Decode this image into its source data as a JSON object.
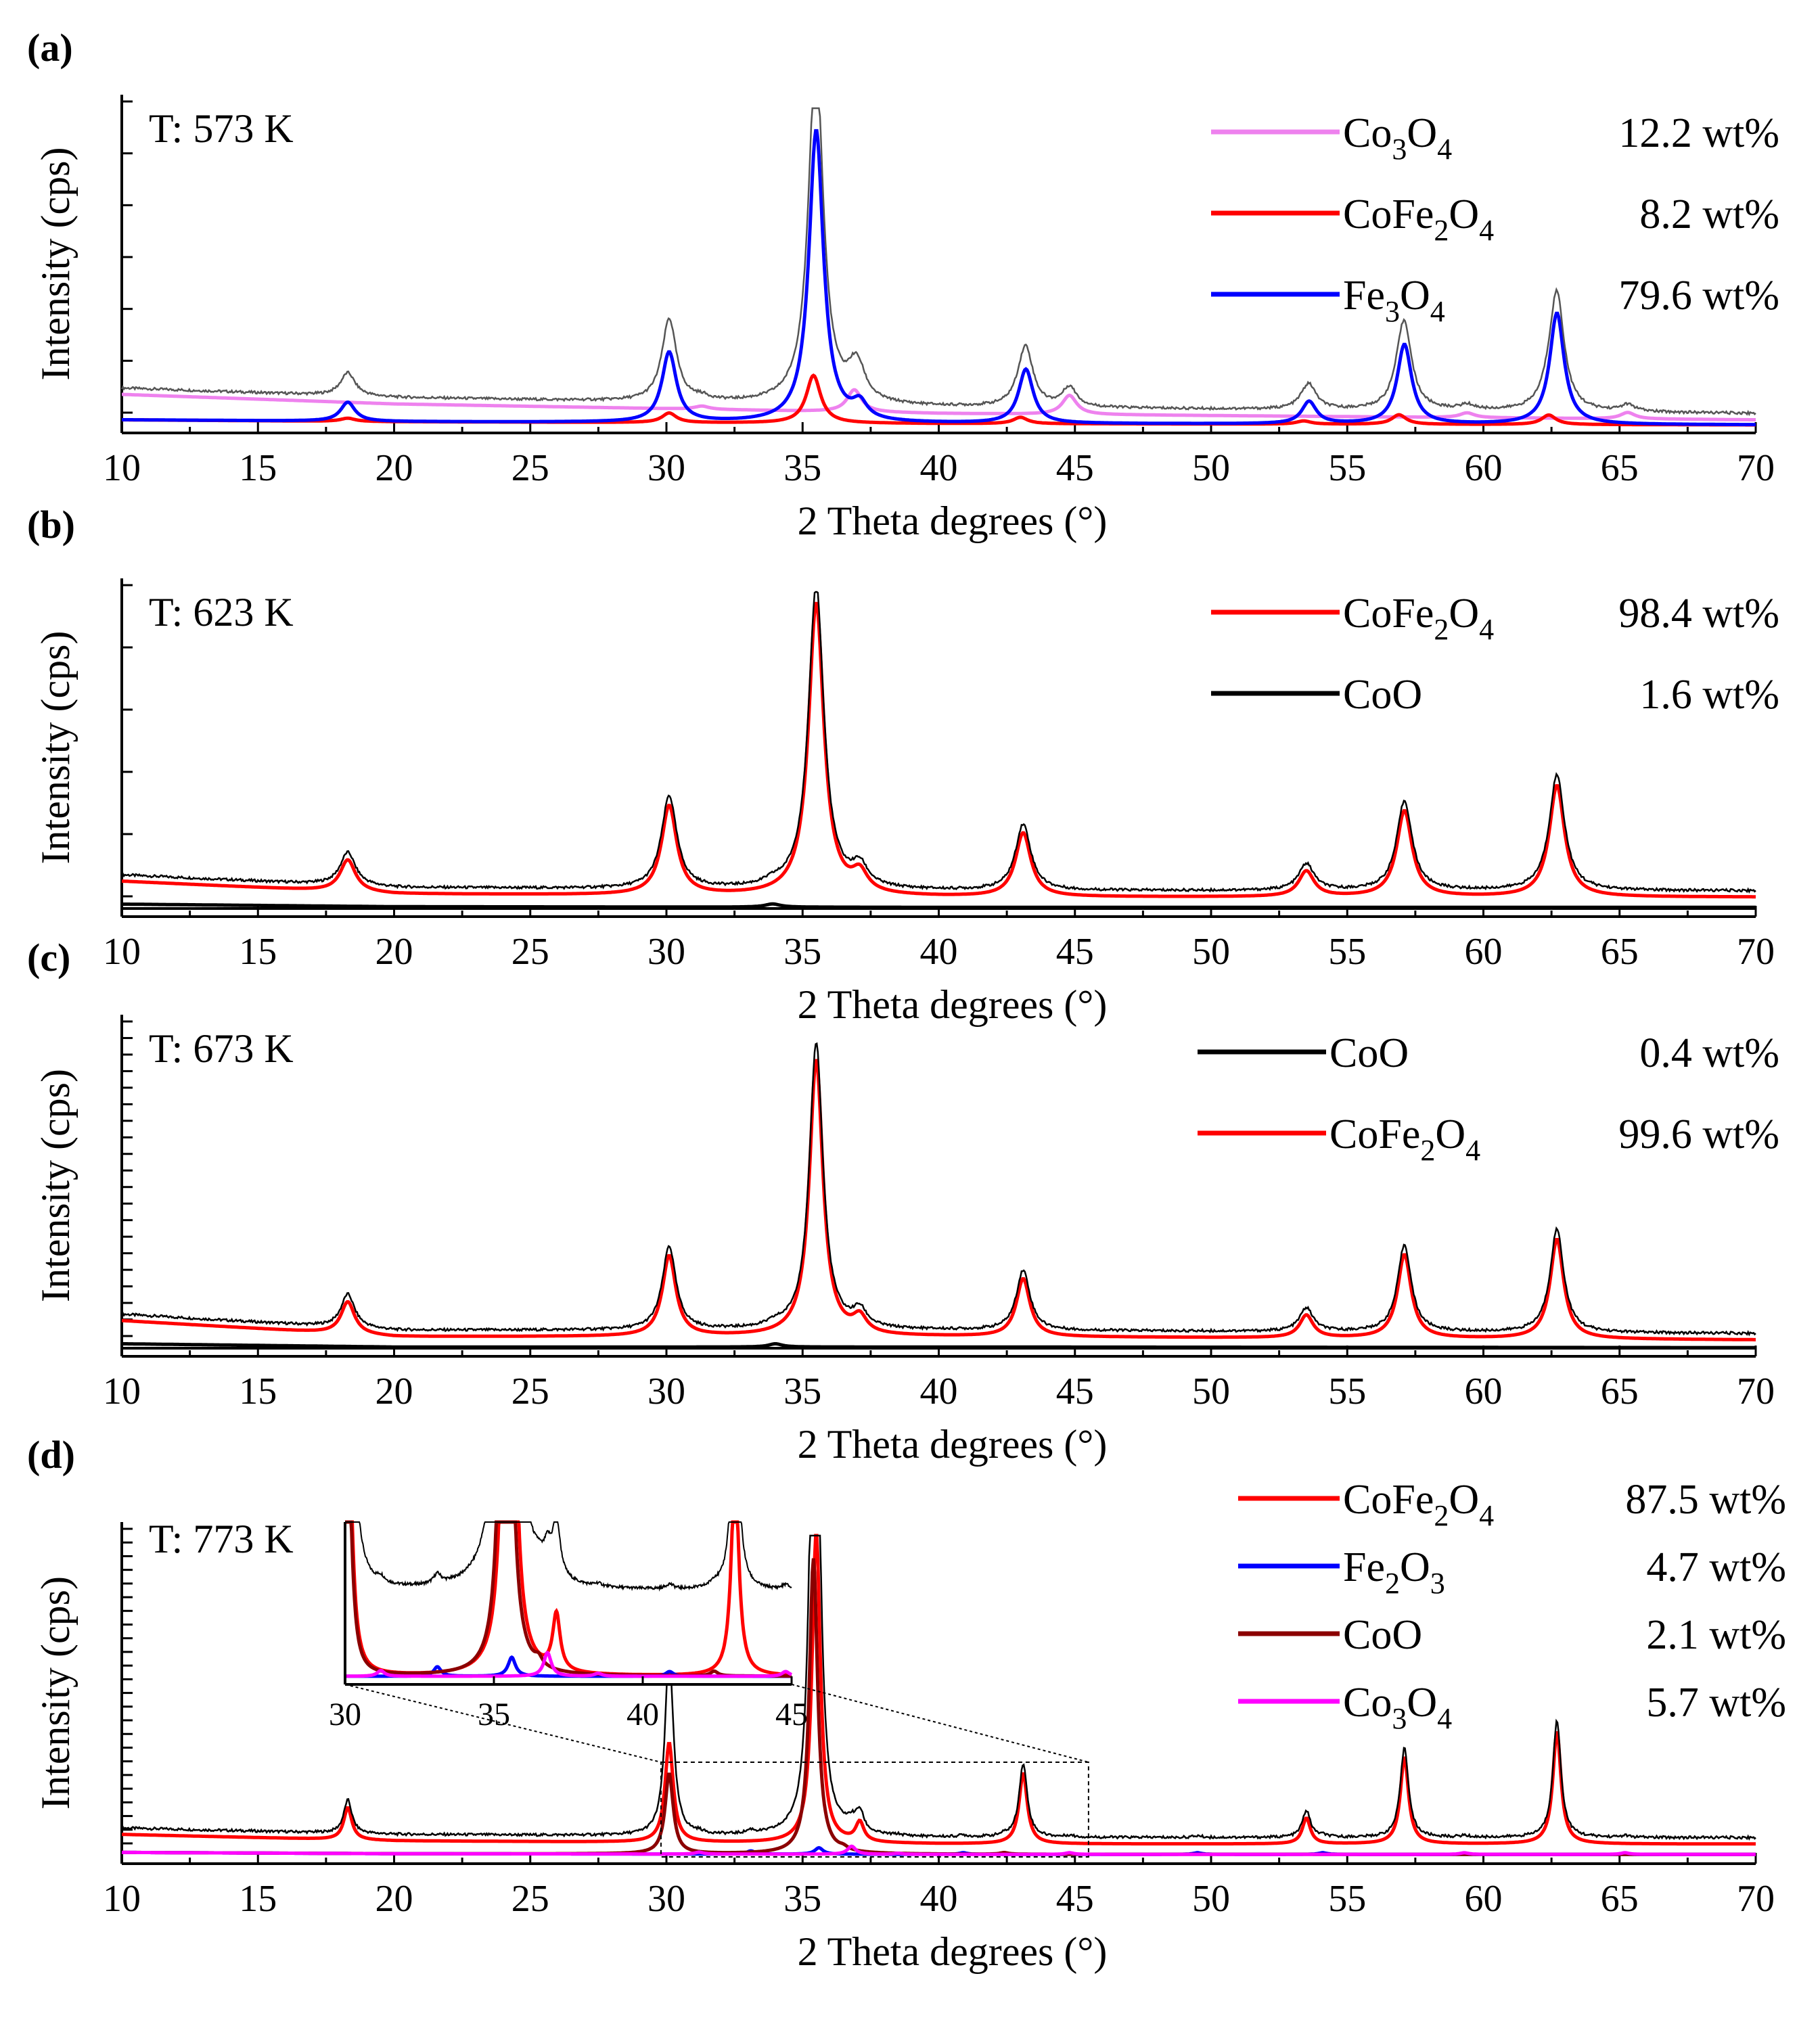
{
  "figure": {
    "x_axis_title": "2 Theta degrees (°)",
    "y_axis_title": "Intensity (cps)"
  },
  "chart_data": [
    {
      "type": "line",
      "panel": "(a)",
      "temperature": "T: 573 K",
      "xlabel": "2 Theta degrees (°)",
      "ylabel": "Intensity (cps)",
      "xlim": [
        10,
        70
      ],
      "xticks": [
        10,
        15,
        20,
        25,
        30,
        35,
        40,
        45,
        50,
        55,
        60,
        65,
        70
      ],
      "ylim": [
        0,
        100
      ],
      "background": [
        [
          10,
          10
        ],
        [
          20,
          7
        ],
        [
          40,
          4
        ],
        [
          70,
          2
        ]
      ],
      "observed_color": "#555555",
      "legend": [
        {
          "phase": "Co3O4",
          "base": "Co",
          "sub1": "3",
          "mid": "O",
          "sub2": "4",
          "wt": "12.2 wt%",
          "color": "#ee82ee"
        },
        {
          "phase": "CoFe2O4",
          "base": "CoFe",
          "sub1": "2",
          "mid": "O",
          "sub2": "4",
          "wt": "8.2 wt%",
          "color": "#ff0000"
        },
        {
          "phase": "Fe3O4",
          "base": "Fe",
          "sub1": "3",
          "mid": "O",
          "sub2": "4",
          "wt": "79.6 wt%",
          "color": "#0000ff"
        }
      ],
      "series": [
        {
          "name": "Co3O4",
          "color": "#ee82ee",
          "peaks": [
            [
              31.3,
              1
            ],
            [
              36.9,
              7
            ],
            [
              44.8,
              6
            ],
            [
              59.4,
              1.5
            ],
            [
              65.3,
              2
            ]
          ]
        },
        {
          "name": "CoFe2O4",
          "color": "#ff0000",
          "peaks": [
            [
              18.3,
              1
            ],
            [
              30.1,
              3
            ],
            [
              35.4,
              15
            ],
            [
              43.0,
              2
            ],
            [
              53.4,
              1
            ],
            [
              56.9,
              3
            ],
            [
              62.4,
              3
            ]
          ]
        },
        {
          "name": "Fe3O4",
          "color": "#0000ff",
          "peaks": [
            [
              18.3,
              6
            ],
            [
              30.1,
              22
            ],
            [
              35.5,
              92
            ],
            [
              37.1,
              5
            ],
            [
              43.2,
              17
            ],
            [
              53.6,
              7
            ],
            [
              57.1,
              25
            ],
            [
              62.7,
              35
            ]
          ]
        }
      ]
    },
    {
      "type": "line",
      "panel": "(b)",
      "temperature": "T: 623 K",
      "xlabel": "2 Theta degrees (°)",
      "ylabel": "Intensity (cps)",
      "xlim": [
        10,
        70
      ],
      "xticks": [
        10,
        15,
        20,
        25,
        30,
        35,
        40,
        45,
        50,
        55,
        60,
        65,
        70
      ],
      "ylim": [
        0,
        100
      ],
      "background": [
        [
          10,
          9
        ],
        [
          20,
          5
        ],
        [
          40,
          4
        ],
        [
          70,
          4
        ]
      ],
      "observed_color": "#000000",
      "legend": [
        {
          "phase": "CoFe2O4",
          "base": "CoFe",
          "sub1": "2",
          "mid": "O",
          "sub2": "4",
          "wt": "98.4 wt%",
          "color": "#ff0000"
        },
        {
          "phase": "CoO",
          "base": "CoO",
          "sub1": "",
          "mid": "",
          "sub2": "",
          "wt": "1.6 wt%",
          "color": "#000000"
        }
      ],
      "series": [
        {
          "name": "CoFe2O4",
          "color": "#ff0000",
          "peaks": [
            [
              18.3,
              10
            ],
            [
              30.1,
              28
            ],
            [
              35.5,
              92
            ],
            [
              37.1,
              6
            ],
            [
              43.1,
              20
            ],
            [
              53.5,
              8
            ],
            [
              57.1,
              27
            ],
            [
              62.7,
              35
            ]
          ]
        },
        {
          "name": "CoO",
          "color": "#000000",
          "peaks": [
            [
              33.9,
              1
            ]
          ]
        }
      ]
    },
    {
      "type": "line",
      "panel": "(c)",
      "temperature": "T: 673 K",
      "xlabel": "2 Theta degrees (°)",
      "ylabel": "Intensity (cps)",
      "xlim": [
        10,
        70
      ],
      "xticks": [
        10,
        15,
        20,
        25,
        30,
        35,
        40,
        45,
        50,
        55,
        60,
        65,
        70
      ],
      "ylim": [
        0,
        100
      ],
      "background": [
        [
          10,
          9
        ],
        [
          20,
          4
        ],
        [
          40,
          4
        ],
        [
          70,
          3
        ]
      ],
      "observed_color": "#000000",
      "legend": [
        {
          "phase": "CoO",
          "base": "CoO",
          "sub1": "",
          "mid": "",
          "sub2": "",
          "wt": "0.4 wt%",
          "color": "#000000"
        },
        {
          "phase": "CoFe2O4",
          "base": "CoFe",
          "sub1": "2",
          "mid": "O",
          "sub2": "4",
          "wt": "99.6 wt%",
          "color": "#ff0000"
        }
      ],
      "series": [
        {
          "name": "CoFe2O4",
          "color": "#ff0000",
          "peaks": [
            [
              18.3,
              10
            ],
            [
              30.1,
              25
            ],
            [
              35.5,
              86
            ],
            [
              37.1,
              5
            ],
            [
              43.1,
              18
            ],
            [
              53.5,
              7
            ],
            [
              57.1,
              26
            ],
            [
              62.7,
              31
            ]
          ]
        },
        {
          "name": "CoO",
          "color": "#000000",
          "peaks": [
            [
              34.0,
              1
            ]
          ]
        }
      ]
    },
    {
      "type": "line",
      "panel": "(d)",
      "temperature": "T: 773 K",
      "xlabel": "2 Theta degrees (°)",
      "ylabel": "Intensity (cps)",
      "xlim": [
        10,
        70
      ],
      "xticks": [
        10,
        15,
        20,
        25,
        30,
        35,
        40,
        45,
        50,
        55,
        60,
        65,
        70
      ],
      "ylim": [
        0,
        100
      ],
      "background": [
        [
          10,
          7
        ],
        [
          20,
          5
        ],
        [
          40,
          4
        ],
        [
          70,
          4
        ]
      ],
      "observed_color": "#000000",
      "legend": [
        {
          "phase": "CoFe2O4",
          "base": "CoFe",
          "sub1": "2",
          "mid": "O",
          "sub2": "4",
          "wt": "87.5 wt%",
          "color": "#ff0000"
        },
        {
          "phase": "Fe2O3",
          "base": "Fe",
          "sub1": "2",
          "mid": "O",
          "sub2": "3",
          "wt": "4.7 wt%",
          "color": "#0000ff"
        },
        {
          "phase": "CoO",
          "base": "CoO",
          "sub1": "",
          "mid": "",
          "sub2": "",
          "wt": "2.1 wt%",
          "color": "#8b0000"
        },
        {
          "phase": "Co3O4",
          "base": "Co",
          "sub1": "3",
          "mid": "O",
          "sub2": "4",
          "wt": "5.7 wt%",
          "color": "#ff00ff"
        }
      ],
      "series": [
        {
          "name": "CoFe2O4",
          "color": "#ff0000",
          "peaks": [
            [
              18.3,
              10
            ],
            [
              30.1,
              31
            ],
            [
              35.5,
              98
            ],
            [
              37.1,
              6
            ],
            [
              43.1,
              22
            ],
            [
              53.5,
              8
            ],
            [
              57.1,
              27
            ],
            [
              62.7,
              35
            ]
          ]
        },
        {
          "name": "Fe2O3",
          "color": "#0000ff",
          "peaks": [
            [
              33.1,
              1
            ],
            [
              35.6,
              2
            ],
            [
              40.9,
              0.5
            ],
            [
              49.5,
              0.5
            ],
            [
              54.1,
              0.5
            ]
          ]
        },
        {
          "name": "CoO",
          "color": "#8b0000",
          "peaks": [
            [
              30.1,
              25
            ],
            [
              35.4,
              92
            ],
            [
              36.5,
              0.8
            ],
            [
              42.4,
              0.5
            ]
          ]
        },
        {
          "name": "Co3O4",
          "color": "#ff00ff",
          "peaks": [
            [
              31.2,
              0.6
            ],
            [
              36.8,
              2.5
            ],
            [
              38.5,
              0.3
            ],
            [
              44.8,
              0.5
            ],
            [
              59.3,
              0.5
            ],
            [
              65.2,
              0.5
            ]
          ]
        }
      ],
      "inset": {
        "xlim": [
          30,
          45
        ],
        "xticks": [
          30,
          35,
          40,
          45
        ],
        "zoom_box_x": [
          29.8,
          45.5
        ]
      }
    }
  ]
}
